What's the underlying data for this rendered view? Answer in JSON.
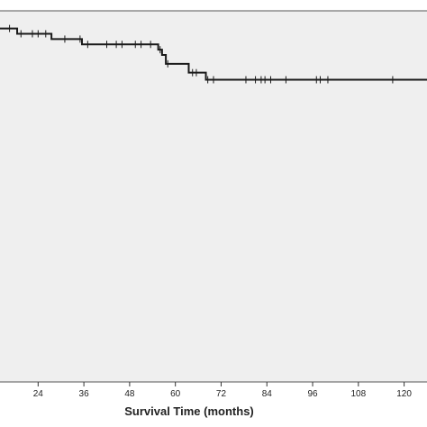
{
  "chart_data": {
    "type": "line",
    "title": "",
    "xlabel": "Survival Time (months)",
    "ylabel": "",
    "xlim": [
      14,
      126
    ],
    "ylim": [
      0,
      1.05
    ],
    "x_ticks": [
      "24",
      "36",
      "48",
      "60",
      "72",
      "84",
      "96",
      "108",
      "120"
    ],
    "grid": false,
    "legend": "none",
    "colors": {
      "plot_background": "#efefef",
      "line": "#1a1a1a",
      "frame": "#555555"
    },
    "series": [
      {
        "steps": [
          {
            "x": 14,
            "y": 1.0
          },
          {
            "x": 18.5,
            "y": 0.985
          },
          {
            "x": 27.5,
            "y": 0.97
          },
          {
            "x": 35.5,
            "y": 0.955
          },
          {
            "x": 55.5,
            "y": 0.94
          },
          {
            "x": 56.5,
            "y": 0.925
          },
          {
            "x": 57.5,
            "y": 0.9
          },
          {
            "x": 63.5,
            "y": 0.875
          },
          {
            "x": 68,
            "y": 0.855
          },
          {
            "x": 126,
            "y": 0.855
          }
        ],
        "censored": [
          {
            "x": 16.5,
            "y": 1.0
          },
          {
            "x": 19.5,
            "y": 0.985
          },
          {
            "x": 22.5,
            "y": 0.985
          },
          {
            "x": 24,
            "y": 0.985
          },
          {
            "x": 26,
            "y": 0.985
          },
          {
            "x": 31,
            "y": 0.97
          },
          {
            "x": 35,
            "y": 0.97
          },
          {
            "x": 37,
            "y": 0.955
          },
          {
            "x": 42,
            "y": 0.955
          },
          {
            "x": 44.5,
            "y": 0.955
          },
          {
            "x": 46,
            "y": 0.955
          },
          {
            "x": 49.5,
            "y": 0.955
          },
          {
            "x": 51,
            "y": 0.955
          },
          {
            "x": 53.5,
            "y": 0.955
          },
          {
            "x": 56,
            "y": 0.94
          },
          {
            "x": 58,
            "y": 0.9
          },
          {
            "x": 64.5,
            "y": 0.875
          },
          {
            "x": 65.5,
            "y": 0.875
          },
          {
            "x": 68.5,
            "y": 0.855
          },
          {
            "x": 70,
            "y": 0.855
          },
          {
            "x": 78.5,
            "y": 0.855
          },
          {
            "x": 81,
            "y": 0.855
          },
          {
            "x": 82.5,
            "y": 0.855
          },
          {
            "x": 83.5,
            "y": 0.855
          },
          {
            "x": 85,
            "y": 0.855
          },
          {
            "x": 89,
            "y": 0.855
          },
          {
            "x": 97,
            "y": 0.855
          },
          {
            "x": 98,
            "y": 0.855
          },
          {
            "x": 100,
            "y": 0.855
          },
          {
            "x": 117,
            "y": 0.855
          }
        ]
      }
    ]
  }
}
